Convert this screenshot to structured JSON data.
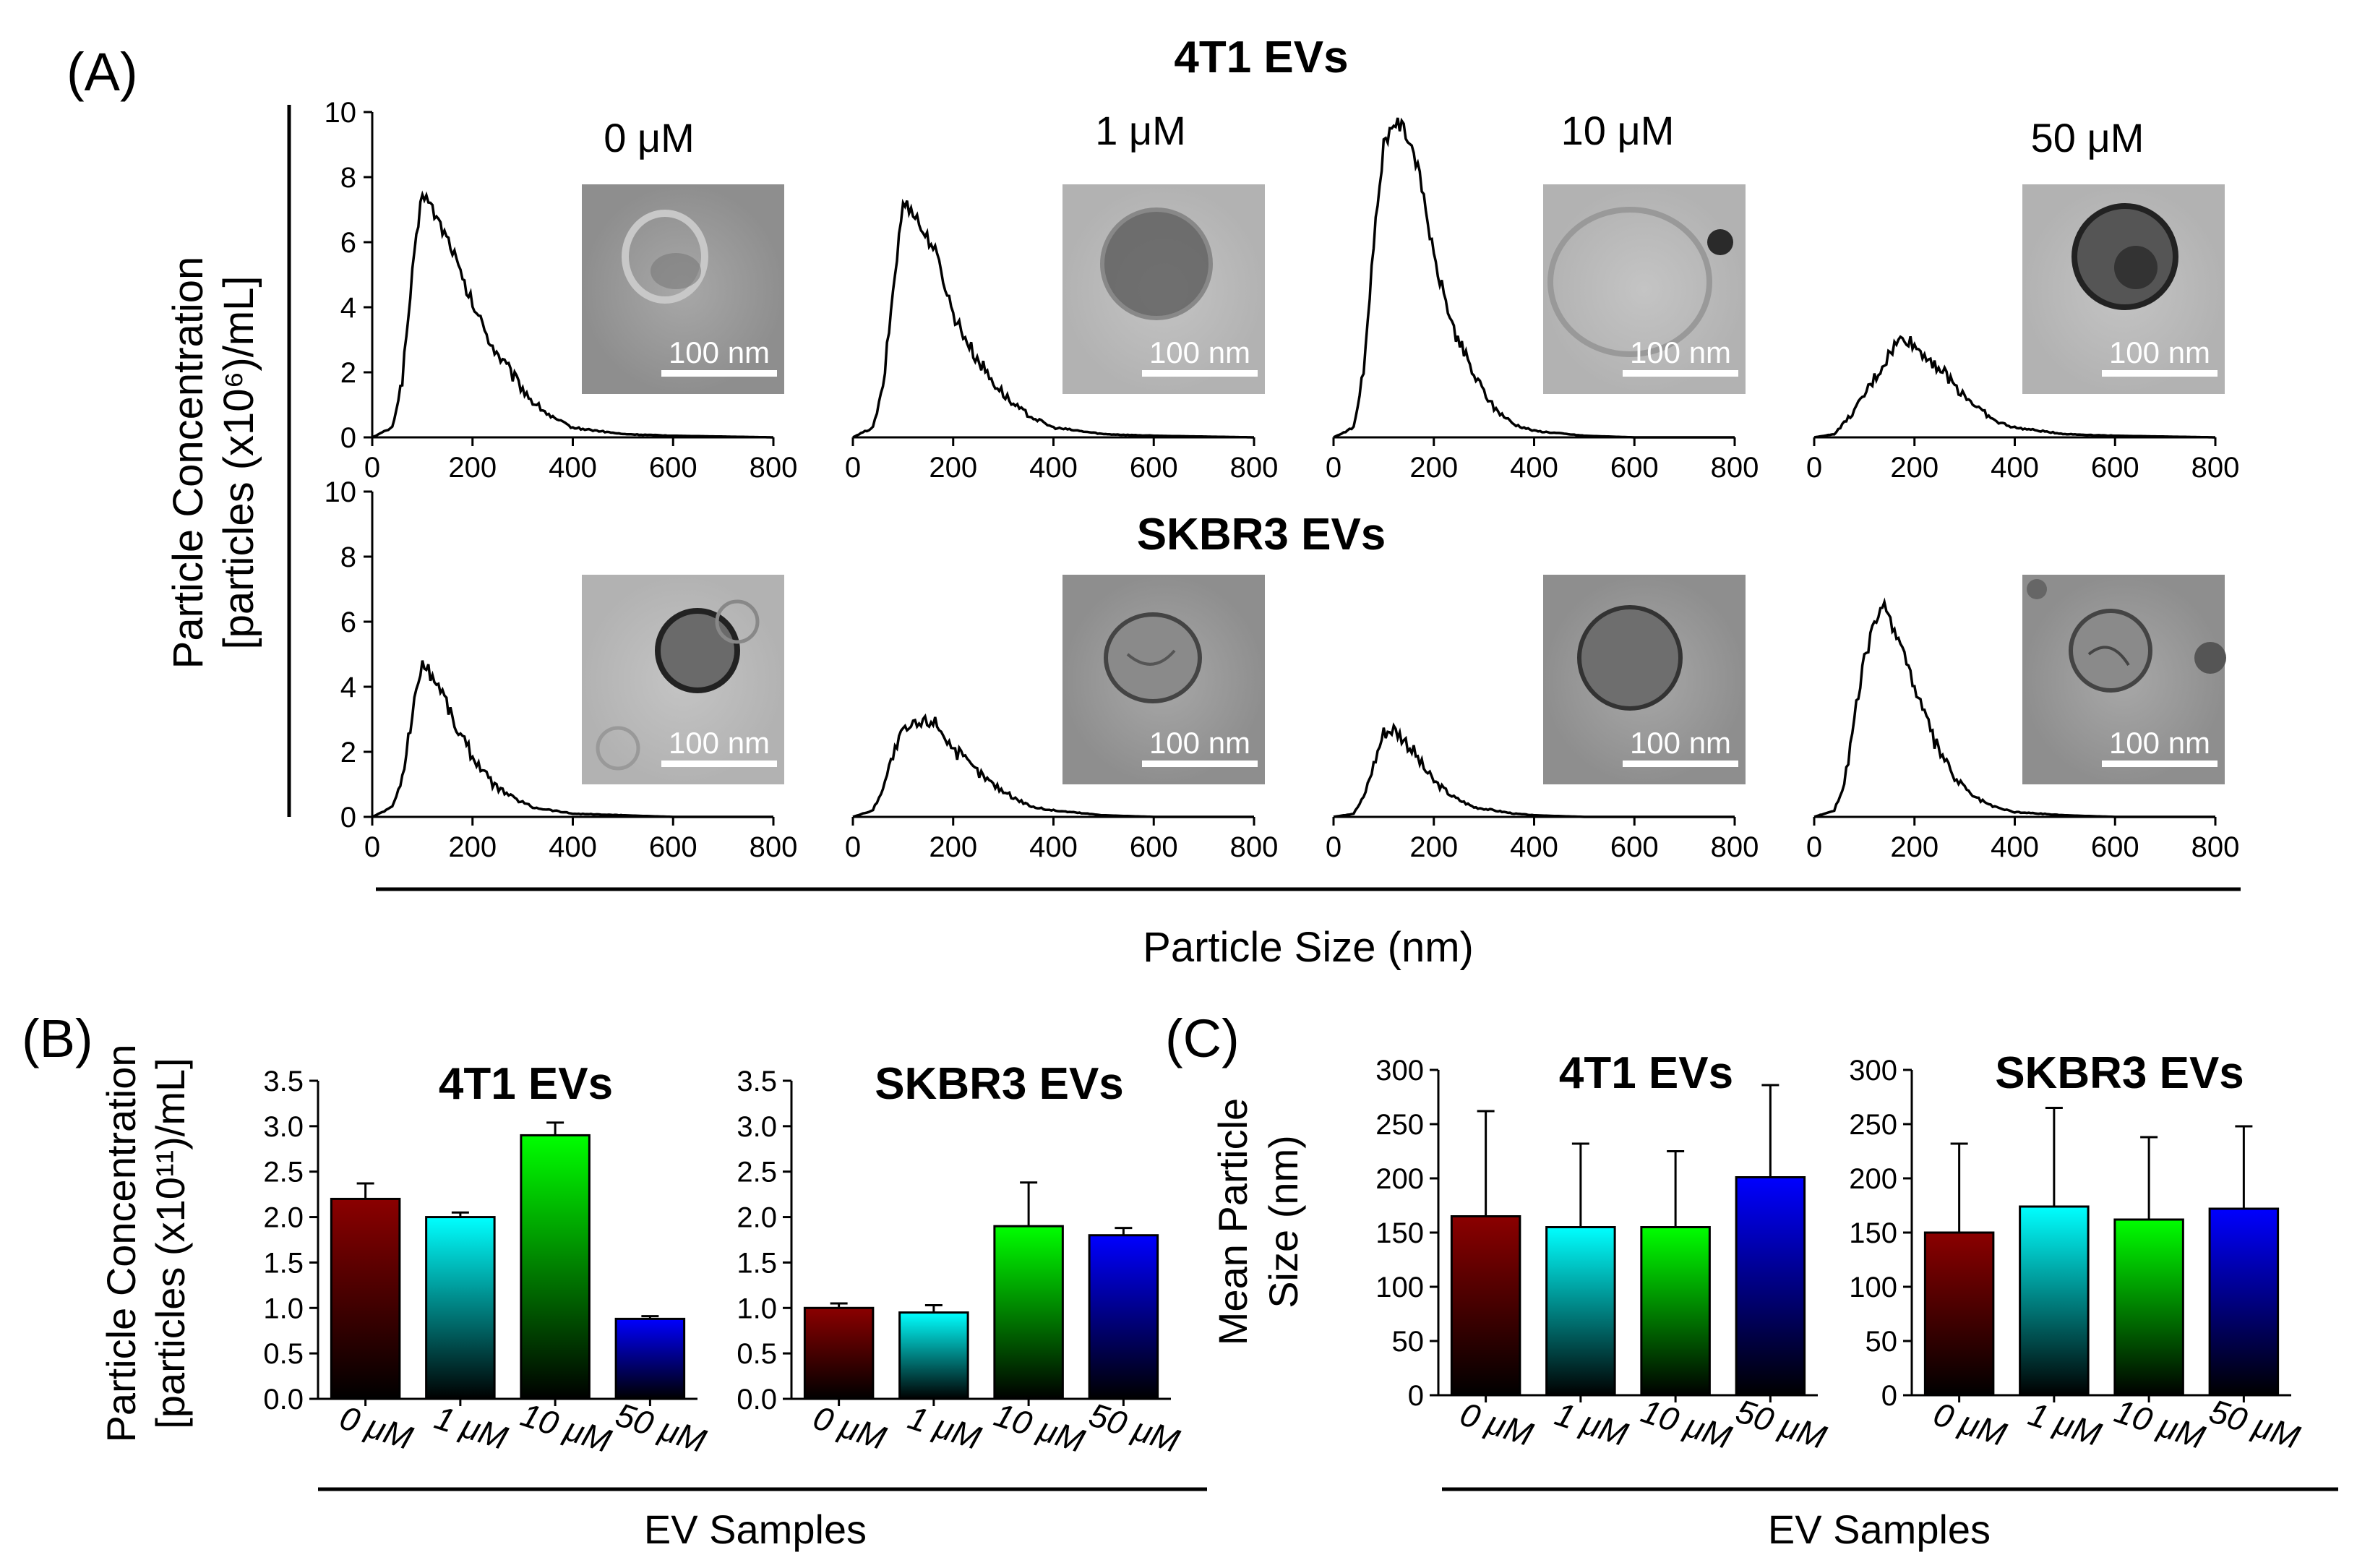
{
  "panels": {
    "a": "(A)",
    "b": "(B)",
    "c": "(C)"
  },
  "panel_a": {
    "row_titles": [
      "4T1 EVs",
      "SKBR3 EVs"
    ],
    "conditions": [
      "0 μM",
      "1 μM",
      "10 μM",
      "50 μM"
    ],
    "ylabel_line1": "Particle Concentration",
    "ylabel_line2": "[particles (x10⁶)/mL]",
    "xlabel": "Particle Size (nm)",
    "scale_bar": "100 nm",
    "x_ticks": [
      "0",
      "200",
      "400",
      "600",
      "800"
    ],
    "y_ticks": [
      "0",
      "2",
      "4",
      "6",
      "8",
      "10"
    ]
  },
  "panel_b": {
    "ylabel_line1": "Particle Concentration",
    "ylabel_line2": "[particles (x10¹¹)/mL]",
    "xlabel": "EV Samples",
    "y_ticks": [
      "0.0",
      "0.5",
      "1.0",
      "1.5",
      "2.0",
      "2.5",
      "3.0",
      "3.5"
    ]
  },
  "panel_c": {
    "ylabel_line1": "Mean Particle",
    "ylabel_line2": "Size (nm)",
    "xlabel": "EV Samples",
    "y_ticks": [
      "0",
      "50",
      "100",
      "150",
      "200",
      "250",
      "300"
    ]
  },
  "colors": {
    "0uM": "#8b0000",
    "1uM": "#00ffff",
    "10uM": "#00ff00",
    "50uM": "#0000ff"
  },
  "chart_data": [
    {
      "type": "line",
      "title": "4T1 EVs 0 μM",
      "xlabel": "Particle Size (nm)",
      "ylabel": "Particle Concentration [particles (x10⁶)/mL]",
      "xlim": [
        0,
        800
      ],
      "ylim": [
        0,
        10
      ],
      "peak_nm": 100,
      "peak_value": 7.8,
      "x": [
        0,
        40,
        60,
        80,
        100,
        120,
        140,
        160,
        180,
        200,
        240,
        280,
        320,
        360,
        400,
        500,
        600,
        800
      ],
      "y": [
        0,
        0.3,
        1.8,
        5.0,
        7.6,
        7.0,
        6.4,
        5.8,
        4.8,
        4.1,
        2.8,
        1.9,
        1.1,
        0.6,
        0.3,
        0.1,
        0.05,
        0
      ]
    },
    {
      "type": "line",
      "title": "4T1 EVs 1 μM",
      "xlabel": "Particle Size (nm)",
      "ylabel": "Particle Concentration [particles (x10⁶)/mL]",
      "xlim": [
        0,
        800
      ],
      "ylim": [
        0,
        10
      ],
      "peak_nm": 110,
      "peak_value": 7.5,
      "x": [
        0,
        40,
        60,
        80,
        100,
        120,
        140,
        160,
        180,
        200,
        240,
        280,
        320,
        360,
        400,
        500,
        600,
        800
      ],
      "y": [
        0,
        0.3,
        1.5,
        4.5,
        7.2,
        7.0,
        6.3,
        5.9,
        4.9,
        3.8,
        2.6,
        1.7,
        1.0,
        0.6,
        0.3,
        0.1,
        0.05,
        0
      ]
    },
    {
      "type": "line",
      "title": "4T1 EVs 10 μM",
      "xlabel": "Particle Size (nm)",
      "ylabel": "Particle Concentration [particles (x10⁶)/mL]",
      "xlim": [
        0,
        800
      ],
      "ylim": [
        0,
        10
      ],
      "peak_nm": 120,
      "peak_value": 9.8,
      "x": [
        0,
        40,
        60,
        80,
        100,
        120,
        140,
        160,
        180,
        200,
        240,
        280,
        320,
        360,
        400,
        500,
        600,
        800
      ],
      "y": [
        0,
        0.3,
        2.0,
        6.0,
        9.0,
        9.7,
        9.5,
        8.8,
        7.4,
        5.5,
        3.3,
        1.9,
        0.9,
        0.4,
        0.2,
        0.05,
        0,
        0
      ]
    },
    {
      "type": "line",
      "title": "4T1 EVs 50 μM",
      "xlabel": "Particle Size (nm)",
      "ylabel": "Particle Concentration [particles (x10⁶)/mL]",
      "xlim": [
        0,
        800
      ],
      "ylim": [
        0,
        10
      ],
      "peak_nm": 180,
      "peak_value": 3.2,
      "x": [
        0,
        40,
        80,
        120,
        160,
        180,
        200,
        240,
        280,
        320,
        360,
        400,
        500,
        600,
        800
      ],
      "y": [
        0,
        0.1,
        0.8,
        1.8,
        2.8,
        3.1,
        2.8,
        2.3,
        1.6,
        1.0,
        0.5,
        0.3,
        0.1,
        0.05,
        0
      ]
    },
    {
      "type": "line",
      "title": "SKBR3 EVs 0 μM",
      "xlabel": "Particle Size (nm)",
      "ylabel": "Particle Concentration [particles (x10⁶)/mL]",
      "xlim": [
        0,
        800
      ],
      "ylim": [
        0,
        10
      ],
      "peak_nm": 95,
      "peak_value": 5.0,
      "x": [
        0,
        40,
        60,
        80,
        100,
        120,
        140,
        160,
        180,
        200,
        240,
        280,
        320,
        360,
        400,
        500,
        600,
        800
      ],
      "y": [
        0,
        0.3,
        1.2,
        3.2,
        4.8,
        4.3,
        3.9,
        3.0,
        2.4,
        1.9,
        1.0,
        0.6,
        0.3,
        0.2,
        0.1,
        0.05,
        0,
        0
      ]
    },
    {
      "type": "line",
      "title": "SKBR3 EVs 1 μM",
      "xlabel": "Particle Size (nm)",
      "ylabel": "Particle Concentration [particles (x10⁶)/mL]",
      "xlim": [
        0,
        800
      ],
      "ylim": [
        0,
        10
      ],
      "peak_nm": 160,
      "peak_value": 3.1,
      "x": [
        0,
        40,
        60,
        80,
        100,
        120,
        140,
        160,
        180,
        200,
        240,
        280,
        320,
        360,
        400,
        500,
        600,
        800
      ],
      "y": [
        0,
        0.2,
        0.9,
        1.9,
        2.6,
        2.8,
        2.9,
        3.0,
        2.6,
        2.1,
        1.5,
        1.0,
        0.6,
        0.3,
        0.2,
        0.05,
        0,
        0
      ]
    },
    {
      "type": "line",
      "title": "SKBR3 EVs 10 μM",
      "xlabel": "Particle Size (nm)",
      "ylabel": "Particle Concentration [particles (x10⁶)/mL]",
      "xlim": [
        0,
        800
      ],
      "ylim": [
        0,
        10
      ],
      "peak_nm": 110,
      "peak_value": 2.9,
      "x": [
        0,
        40,
        60,
        80,
        100,
        120,
        140,
        160,
        180,
        200,
        240,
        280,
        320,
        360,
        400,
        500,
        600,
        800
      ],
      "y": [
        0,
        0.1,
        0.6,
        1.6,
        2.6,
        2.7,
        2.4,
        2.0,
        1.5,
        1.1,
        0.6,
        0.3,
        0.2,
        0.1,
        0.05,
        0,
        0,
        0
      ]
    },
    {
      "type": "line",
      "title": "SKBR3 EVs 50 μM",
      "xlabel": "Particle Size (nm)",
      "ylabel": "Particle Concentration [particles (x10⁶)/mL]",
      "xlim": [
        0,
        800
      ],
      "ylim": [
        0,
        10
      ],
      "peak_nm": 140,
      "peak_value": 6.5,
      "x": [
        0,
        40,
        60,
        80,
        100,
        120,
        140,
        160,
        180,
        200,
        240,
        280,
        320,
        360,
        400,
        500,
        600,
        800
      ],
      "y": [
        0,
        0.2,
        1.0,
        3.0,
        4.8,
        6.0,
        6.4,
        5.8,
        5.0,
        4.0,
        2.3,
        1.2,
        0.6,
        0.3,
        0.15,
        0.05,
        0,
        0
      ]
    },
    {
      "type": "bar",
      "title": "4T1 EVs",
      "ylabel": "Particle Concentration [particles (x10¹¹)/mL]",
      "xlabel": "EV Samples",
      "ylim": [
        0,
        3.5
      ],
      "categories": [
        "0 μM",
        "1 μM",
        "10 μM",
        "50 μM"
      ],
      "values": [
        2.2,
        2.0,
        2.9,
        0.88
      ],
      "errors": [
        0.17,
        0.05,
        0.14,
        0.03
      ]
    },
    {
      "type": "bar",
      "title": "SKBR3 EVs",
      "ylabel": "Particle Concentration [particles (x10¹¹)/mL]",
      "xlabel": "EV Samples",
      "ylim": [
        0,
        3.5
      ],
      "categories": [
        "0 μM",
        "1 μM",
        "10 μM",
        "50 μM"
      ],
      "values": [
        1.0,
        0.95,
        1.9,
        1.8
      ],
      "errors": [
        0.05,
        0.08,
        0.48,
        0.08
      ]
    },
    {
      "type": "bar",
      "title": "4T1 EVs",
      "ylabel": "Mean Particle Size (nm)",
      "xlabel": "EV Samples",
      "ylim": [
        0,
        300
      ],
      "categories": [
        "0 μM",
        "1 μM",
        "10 μM",
        "50 μM"
      ],
      "values": [
        165,
        155,
        155,
        201
      ],
      "errors": [
        97,
        77,
        70,
        85
      ]
    },
    {
      "type": "bar",
      "title": "SKBR3 EVs",
      "ylabel": "Mean Particle Size (nm)",
      "xlabel": "EV Samples",
      "ylim": [
        0,
        300
      ],
      "categories": [
        "0 μM",
        "1 μM",
        "10 μM",
        "50 μM"
      ],
      "values": [
        150,
        174,
        162,
        172
      ],
      "errors": [
        82,
        91,
        76,
        76
      ]
    }
  ]
}
